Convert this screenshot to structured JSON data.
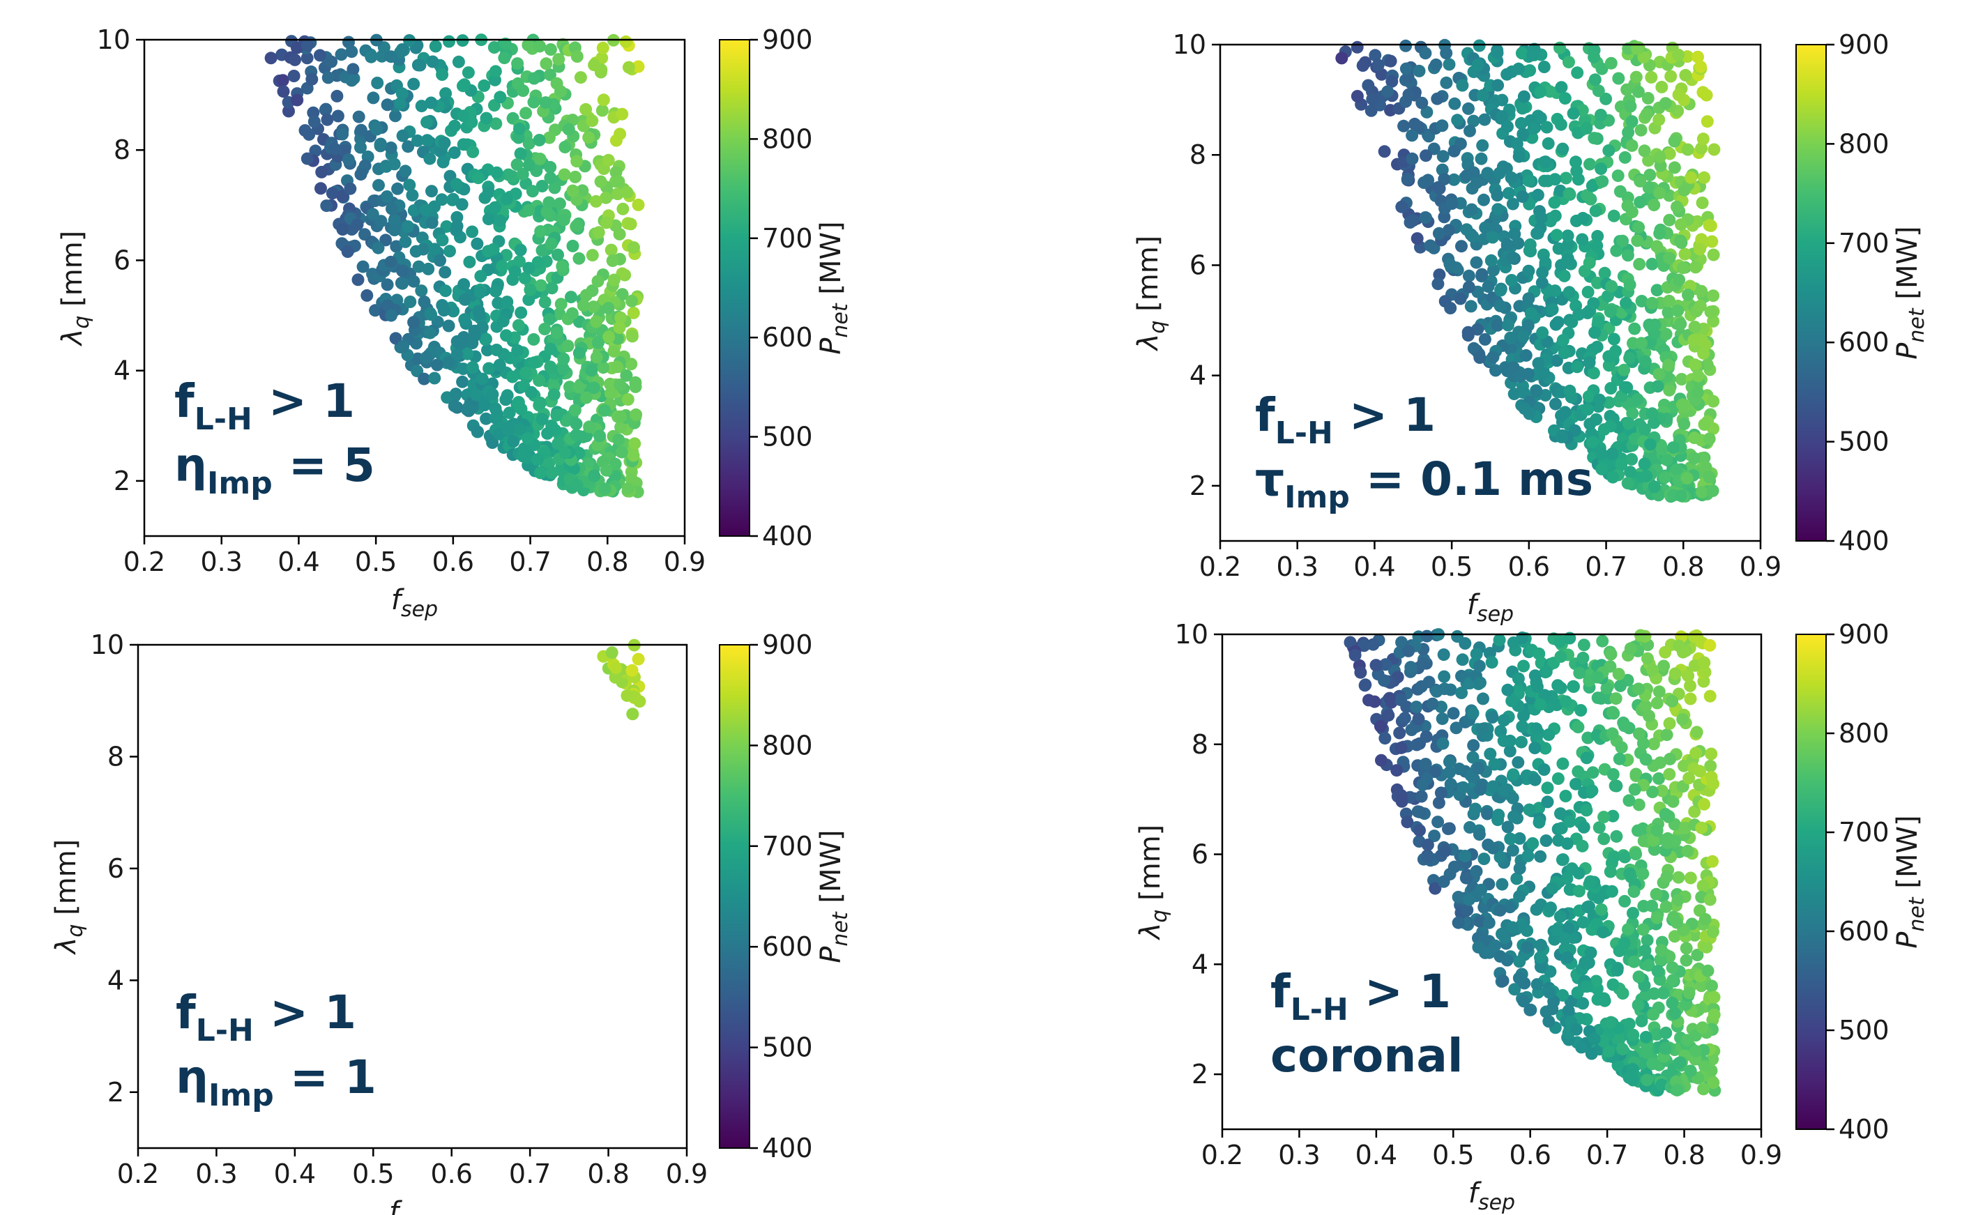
{
  "chart_data": [
    {
      "type": "scatter",
      "title": "",
      "xlabel": "f",
      "xlabel_sub": "sep",
      "ylabel": "λ",
      "ylabel_sub": "q",
      "ylabel_unit": "[mm]",
      "xlim": [
        0.2,
        0.9
      ],
      "ylim": [
        1,
        10
      ],
      "x_ticks": [
        "0.2",
        "0.3",
        "0.4",
        "0.5",
        "0.6",
        "0.7",
        "0.8",
        "0.9"
      ],
      "y_ticks": [
        "2",
        "4",
        "6",
        "8",
        "10"
      ],
      "colorbar": {
        "label": "P",
        "label_sub": "net",
        "unit": "[MW]",
        "min": 400,
        "max": 900,
        "ticks": [
          "400",
          "500",
          "600",
          "700",
          "800",
          "900"
        ],
        "colormap": "viridis"
      },
      "annotation_line1": {
        "main": "f",
        "sub": "L-H",
        "rest": " > 1"
      },
      "annotation_line2": {
        "main": "η",
        "sub": "Imp",
        "rest": " = 5"
      },
      "region": {
        "lambda_min": 1.8,
        "lambda_max": 10,
        "fsep_max": 0.84,
        "boundary": [
          [
            0.35,
            10
          ],
          [
            0.42,
            7.5
          ],
          [
            0.48,
            5.5
          ],
          [
            0.55,
            4
          ],
          [
            0.62,
            3
          ],
          [
            0.7,
            2.2
          ],
          [
            0.76,
            1.8
          ],
          [
            0.84,
            1.8
          ]
        ]
      },
      "series": [
        {
          "points": 1100
        }
      ]
    },
    {
      "type": "scatter",
      "title": "",
      "xlabel": "f",
      "xlabel_sub": "sep",
      "ylabel": "λ",
      "ylabel_sub": "q",
      "ylabel_unit": "[mm]",
      "xlim": [
        0.2,
        0.9
      ],
      "ylim": [
        1,
        10
      ],
      "x_ticks": [
        "0.2",
        "0.3",
        "0.4",
        "0.5",
        "0.6",
        "0.7",
        "0.8",
        "0.9"
      ],
      "y_ticks": [
        "2",
        "4",
        "6",
        "8",
        "10"
      ],
      "colorbar": {
        "label": "P",
        "label_sub": "net",
        "unit": "[MW]",
        "min": 400,
        "max": 900,
        "ticks": [
          "400",
          "500",
          "600",
          "700",
          "800",
          "900"
        ],
        "colormap": "viridis"
      },
      "annotation_line1": {
        "main": "f",
        "sub": "L-H",
        "rest": " > 1"
      },
      "annotation_line2": {
        "main": "τ",
        "sub": "Imp",
        "rest": " = 0.1 ms"
      },
      "region": {
        "lambda_min": 1.8,
        "lambda_max": 10,
        "fsep_max": 0.84,
        "boundary": [
          [
            0.35,
            10
          ],
          [
            0.42,
            7.5
          ],
          [
            0.48,
            5.5
          ],
          [
            0.55,
            4
          ],
          [
            0.62,
            3
          ],
          [
            0.7,
            2.2
          ],
          [
            0.76,
            1.8
          ],
          [
            0.84,
            1.8
          ]
        ]
      },
      "series": [
        {
          "points": 1100
        }
      ]
    },
    {
      "type": "scatter",
      "title": "",
      "xlabel": "f",
      "xlabel_sub": "sep",
      "ylabel": "λ",
      "ylabel_sub": "q",
      "ylabel_unit": "[mm]",
      "xlim": [
        0.2,
        0.9
      ],
      "ylim": [
        1,
        10
      ],
      "x_ticks": [
        "0.2",
        "0.3",
        "0.4",
        "0.5",
        "0.6",
        "0.7",
        "0.8",
        "0.9"
      ],
      "y_ticks": [
        "2",
        "4",
        "6",
        "8",
        "10"
      ],
      "colorbar": {
        "label": "P",
        "label_sub": "net",
        "unit": "[MW]",
        "min": 400,
        "max": 900,
        "ticks": [
          "400",
          "500",
          "600",
          "700",
          "800",
          "900"
        ],
        "colormap": "viridis"
      },
      "annotation_line1": {
        "main": "f",
        "sub": "L-H",
        "rest": " > 1"
      },
      "annotation_line2": {
        "main": "η",
        "sub": "Imp",
        "rest": " = 1"
      },
      "region": {
        "lambda_min": 8.7,
        "lambda_max": 10,
        "fsep_max": 0.84,
        "boundary": [
          [
            0.78,
            10
          ],
          [
            0.8,
            9.5
          ],
          [
            0.83,
            8.7
          ],
          [
            0.84,
            8.7
          ]
        ]
      },
      "series": [
        {
          "points": 24
        }
      ]
    },
    {
      "type": "scatter",
      "title": "",
      "xlabel": "f",
      "xlabel_sub": "sep",
      "ylabel": "λ",
      "ylabel_sub": "q",
      "ylabel_unit": "[mm]",
      "xlim": [
        0.2,
        0.9
      ],
      "ylim": [
        1,
        10
      ],
      "x_ticks": [
        "0.2",
        "0.3",
        "0.4",
        "0.5",
        "0.6",
        "0.7",
        "0.8",
        "0.9"
      ],
      "y_ticks": [
        "2",
        "4",
        "6",
        "8",
        "10"
      ],
      "colorbar": {
        "label": "P",
        "label_sub": "net",
        "unit": "[MW]",
        "min": 400,
        "max": 900,
        "ticks": [
          "400",
          "500",
          "600",
          "700",
          "800",
          "900"
        ],
        "colormap": "viridis"
      },
      "annotation_line1": {
        "main": "f",
        "sub": "L-H",
        "rest": " > 1"
      },
      "annotation_line2": {
        "main": "coronal",
        "sub": "",
        "rest": ""
      },
      "region": {
        "lambda_min": 1.7,
        "lambda_max": 10,
        "fsep_max": 0.84,
        "boundary": [
          [
            0.36,
            10
          ],
          [
            0.41,
            7.5
          ],
          [
            0.47,
            5.5
          ],
          [
            0.54,
            4
          ],
          [
            0.61,
            3
          ],
          [
            0.69,
            2.2
          ],
          [
            0.76,
            1.7
          ],
          [
            0.84,
            1.7
          ]
        ]
      },
      "series": [
        {
          "points": 1100
        }
      ]
    }
  ]
}
